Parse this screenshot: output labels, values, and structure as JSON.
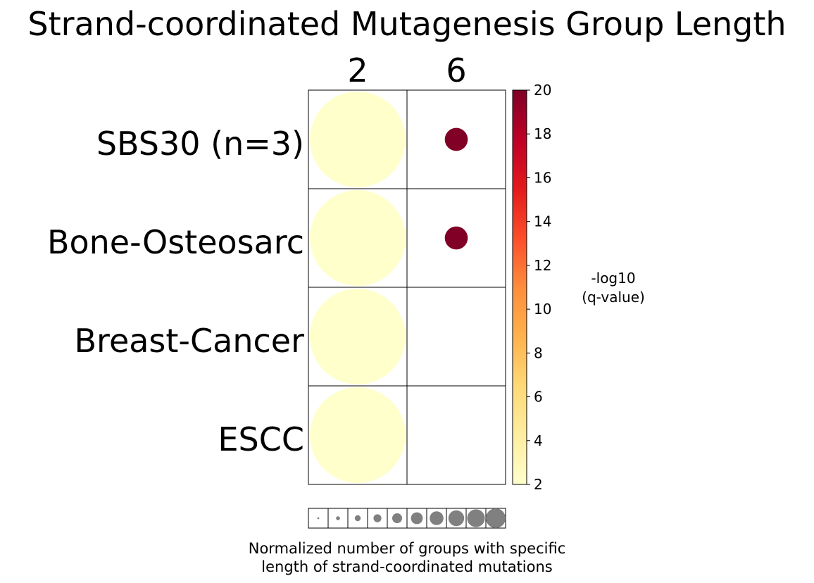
{
  "chart_data": {
    "type": "bubble-heatmap",
    "title": "Strand-coordinated Mutagenesis Group Length",
    "columns": [
      "2",
      "6"
    ],
    "rows": [
      "SBS30 (n=3)",
      "Bone-Osteosarc",
      "Breast-Cancer",
      "ESCC"
    ],
    "cells": [
      {
        "row": "SBS30 (n=3)",
        "col": "2",
        "neg_log10_q": 2,
        "size": 1.0
      },
      {
        "row": "SBS30 (n=3)",
        "col": "6",
        "neg_log10_q": 20,
        "size": 0.24
      },
      {
        "row": "Bone-Osteosarc",
        "col": "2",
        "neg_log10_q": 2,
        "size": 1.0
      },
      {
        "row": "Bone-Osteosarc",
        "col": "6",
        "neg_log10_q": 20,
        "size": 0.24
      },
      {
        "row": "Breast-Cancer",
        "col": "2",
        "neg_log10_q": 2,
        "size": 1.0
      },
      {
        "row": "ESCC",
        "col": "2",
        "neg_log10_q": 2,
        "size": 1.0
      }
    ],
    "colorbar": {
      "label_line1": "-log10",
      "label_line2": "(q-value)",
      "range": [
        2,
        20
      ],
      "ticks": [
        "2",
        "4",
        "6",
        "8",
        "10",
        "12",
        "14",
        "16",
        "18",
        "20"
      ],
      "colormap": [
        "#ffffcc",
        "#ffeda0",
        "#fed976",
        "#feb24c",
        "#fd8d3c",
        "#fc4e2a",
        "#e31a1c",
        "#bd0026",
        "#800026"
      ]
    },
    "size_legend": {
      "label_line1": "Normalized number of groups with specific",
      "label_line2": "length of strand-coordinated mutations",
      "sizes": [
        0.1,
        0.2,
        0.3,
        0.4,
        0.5,
        0.6,
        0.7,
        0.8,
        0.9,
        1.0
      ],
      "color": "#808080"
    }
  }
}
